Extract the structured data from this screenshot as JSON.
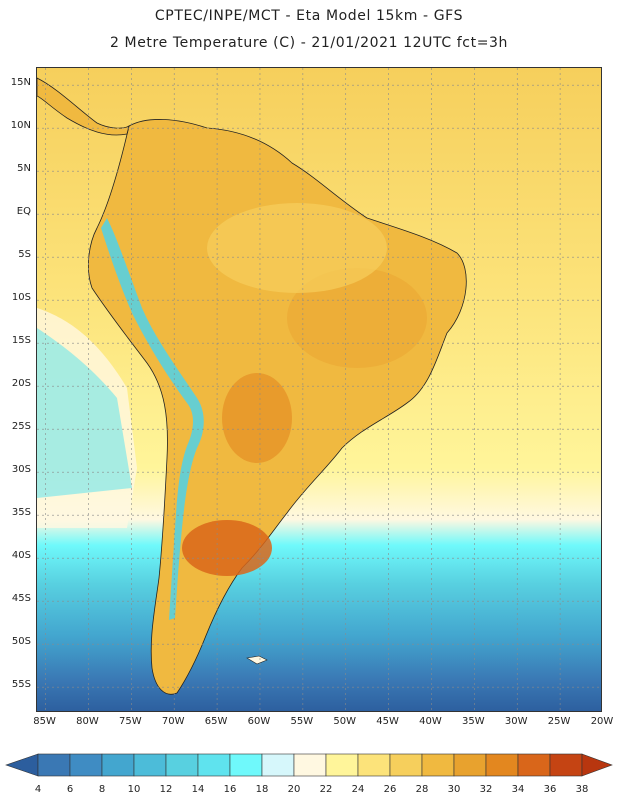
{
  "title": {
    "line1": "CPTEC/INPE/MCT -  Eta Model 15km - GFS",
    "line2": "2 Metre Temperature (C) - 21/01/2021 12UTC fct=3h"
  },
  "map": {
    "lat_ticks": [
      "15N",
      "10N",
      "5N",
      "EQ",
      "5S",
      "10S",
      "15S",
      "20S",
      "25S",
      "30S",
      "35S",
      "40S",
      "45S",
      "50S",
      "55S"
    ],
    "lon_ticks": [
      "85W",
      "80W",
      "75W",
      "70W",
      "65W",
      "60W",
      "55W",
      "50W",
      "45W",
      "40W",
      "35W",
      "30W",
      "25W",
      "20W"
    ],
    "lat_range": [
      -58,
      17
    ],
    "lon_range": [
      -86,
      -20
    ]
  },
  "colorbar": {
    "levels": [
      4,
      6,
      8,
      10,
      12,
      14,
      16,
      18,
      20,
      22,
      24,
      26,
      28,
      30,
      32,
      34,
      36,
      38
    ],
    "colors": [
      "#2c5e9e",
      "#3a78b4",
      "#3f8cc3",
      "#43a6cf",
      "#4cbcd9",
      "#58d0e0",
      "#5fe3ee",
      "#6ff9fb",
      "#d6f7fb",
      "#fff8e1",
      "#fff59a",
      "#fce37a",
      "#f6cf5c",
      "#f0b940",
      "#e8a22e",
      "#e3871f",
      "#d9661a",
      "#c54413",
      "#b8360f"
    ]
  }
}
